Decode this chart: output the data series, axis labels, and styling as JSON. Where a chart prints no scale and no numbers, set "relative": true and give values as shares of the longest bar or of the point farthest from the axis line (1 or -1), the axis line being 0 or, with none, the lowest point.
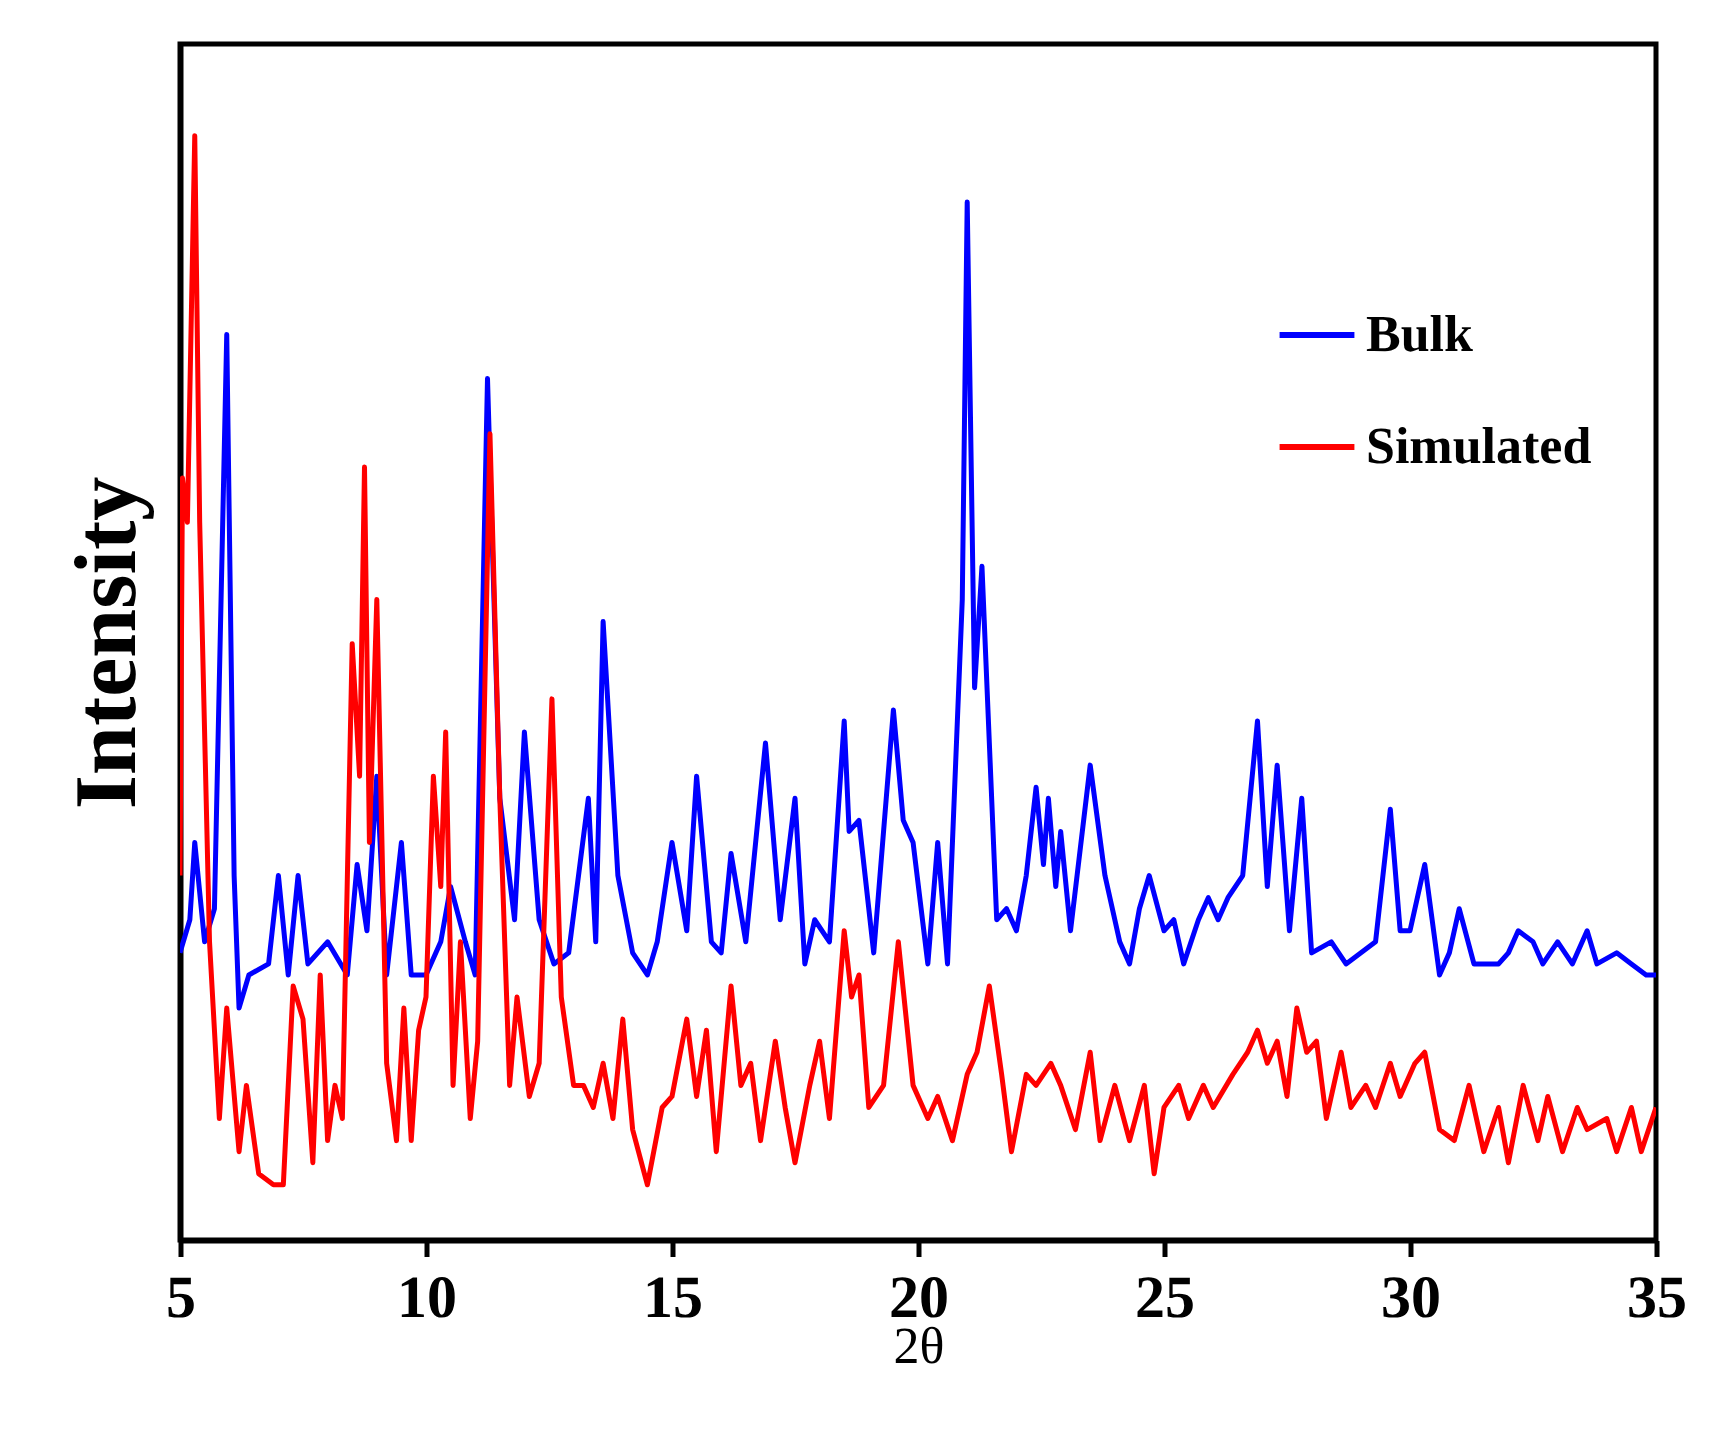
{
  "chart_data": {
    "type": "line",
    "xlabel": "2θ",
    "ylabel": "Intensity",
    "relative": true,
    "xlim": [
      5,
      35
    ],
    "xticks": [
      5,
      10,
      15,
      20,
      25,
      30,
      35
    ],
    "legend": "top right",
    "grid": false,
    "series": [
      {
        "name": "Bulk",
        "color": "#0000ff",
        "x": [
          5.0,
          5.2,
          5.3,
          5.5,
          5.7,
          5.95,
          6.1,
          6.2,
          6.4,
          6.8,
          7.0,
          7.2,
          7.4,
          7.6,
          8.0,
          8.4,
          8.6,
          8.8,
          9.0,
          9.2,
          9.5,
          9.7,
          10.0,
          10.3,
          10.5,
          10.8,
          11.0,
          11.25,
          11.5,
          11.8,
          12.0,
          12.3,
          12.6,
          12.9,
          13.3,
          13.45,
          13.6,
          13.9,
          14.2,
          14.5,
          14.7,
          15.0,
          15.3,
          15.5,
          15.8,
          16.0,
          16.2,
          16.5,
          16.9,
          17.2,
          17.5,
          17.7,
          17.9,
          18.2,
          18.5,
          18.6,
          18.8,
          19.1,
          19.5,
          19.7,
          19.9,
          20.2,
          20.4,
          20.6,
          20.9,
          21.0,
          21.15,
          21.3,
          21.6,
          21.8,
          22.0,
          22.2,
          22.4,
          22.55,
          22.65,
          22.8,
          22.9,
          23.1,
          23.5,
          23.8,
          24.1,
          24.3,
          24.5,
          24.7,
          25.0,
          25.2,
          25.4,
          25.7,
          25.9,
          26.1,
          26.3,
          26.6,
          26.9,
          27.1,
          27.3,
          27.55,
          27.8,
          28.0,
          28.4,
          28.7,
          29.3,
          29.6,
          29.8,
          30.0,
          30.3,
          30.6,
          30.8,
          31.0,
          31.3,
          31.8,
          32.0,
          32.2,
          32.5,
          32.7,
          33.0,
          33.3,
          33.6,
          33.8,
          34.2,
          34.5,
          34.8,
          35.0
        ],
        "values": [
          0.26,
          0.29,
          0.36,
          0.27,
          0.3,
          0.82,
          0.33,
          0.21,
          0.24,
          0.25,
          0.33,
          0.24,
          0.33,
          0.25,
          0.27,
          0.24,
          0.34,
          0.28,
          0.42,
          0.24,
          0.36,
          0.24,
          0.24,
          0.27,
          0.32,
          0.27,
          0.24,
          0.78,
          0.4,
          0.29,
          0.46,
          0.29,
          0.25,
          0.26,
          0.4,
          0.27,
          0.56,
          0.33,
          0.26,
          0.24,
          0.27,
          0.36,
          0.28,
          0.42,
          0.27,
          0.26,
          0.35,
          0.27,
          0.45,
          0.29,
          0.4,
          0.25,
          0.29,
          0.27,
          0.47,
          0.37,
          0.38,
          0.26,
          0.48,
          0.38,
          0.36,
          0.25,
          0.36,
          0.25,
          0.58,
          0.94,
          0.5,
          0.61,
          0.29,
          0.3,
          0.28,
          0.33,
          0.41,
          0.34,
          0.4,
          0.32,
          0.37,
          0.28,
          0.43,
          0.33,
          0.27,
          0.25,
          0.3,
          0.33,
          0.28,
          0.29,
          0.25,
          0.29,
          0.31,
          0.29,
          0.31,
          0.33,
          0.47,
          0.32,
          0.43,
          0.28,
          0.4,
          0.26,
          0.27,
          0.25,
          0.27,
          0.39,
          0.28,
          0.28,
          0.34,
          0.24,
          0.26,
          0.3,
          0.25,
          0.25,
          0.26,
          0.28,
          0.27,
          0.25,
          0.27,
          0.25,
          0.28,
          0.25,
          0.26,
          0.25,
          0.24,
          0.24
        ]
      },
      {
        "name": "Simulated",
        "color": "#ff0000",
        "x": [
          5.0,
          5.05,
          5.15,
          5.3,
          5.4,
          5.6,
          5.8,
          5.95,
          6.2,
          6.35,
          6.6,
          6.9,
          7.1,
          7.3,
          7.5,
          7.7,
          7.85,
          8.0,
          8.15,
          8.3,
          8.5,
          8.65,
          8.75,
          8.85,
          9.0,
          9.2,
          9.4,
          9.55,
          9.7,
          9.85,
          10.0,
          10.15,
          10.3,
          10.4,
          10.55,
          10.7,
          10.9,
          11.05,
          11.3,
          11.5,
          11.7,
          11.85,
          12.1,
          12.3,
          12.56,
          12.75,
          13.0,
          13.2,
          13.4,
          13.6,
          13.8,
          14.0,
          14.2,
          14.5,
          14.8,
          15.0,
          15.3,
          15.5,
          15.7,
          15.9,
          16.2,
          16.4,
          16.6,
          16.8,
          17.1,
          17.3,
          17.5,
          17.8,
          18.0,
          18.2,
          18.5,
          18.65,
          18.8,
          19.0,
          19.3,
          19.6,
          19.9,
          20.2,
          20.4,
          20.7,
          21.0,
          21.2,
          21.45,
          21.7,
          21.9,
          22.2,
          22.4,
          22.7,
          22.9,
          23.2,
          23.5,
          23.7,
          24.0,
          24.3,
          24.6,
          24.8,
          25.0,
          25.3,
          25.5,
          25.8,
          26.0,
          26.4,
          26.7,
          26.9,
          27.1,
          27.3,
          27.5,
          27.7,
          27.9,
          28.1,
          28.3,
          28.6,
          28.8,
          29.1,
          29.3,
          29.6,
          29.8,
          30.1,
          30.3,
          30.6,
          30.9,
          31.2,
          31.5,
          31.8,
          32.0,
          32.3,
          32.6,
          32.8,
          33.1,
          33.4,
          33.6,
          34.0,
          34.2,
          34.5,
          34.7,
          35.0
        ],
        "values": [
          0.33,
          0.69,
          0.65,
          1.0,
          0.65,
          0.27,
          0.11,
          0.21,
          0.08,
          0.14,
          0.06,
          0.05,
          0.05,
          0.23,
          0.2,
          0.07,
          0.24,
          0.09,
          0.14,
          0.11,
          0.54,
          0.42,
          0.7,
          0.36,
          0.58,
          0.16,
          0.09,
          0.21,
          0.09,
          0.19,
          0.22,
          0.42,
          0.32,
          0.46,
          0.14,
          0.27,
          0.11,
          0.18,
          0.73,
          0.4,
          0.14,
          0.22,
          0.13,
          0.16,
          0.49,
          0.22,
          0.14,
          0.14,
          0.12,
          0.16,
          0.11,
          0.2,
          0.1,
          0.05,
          0.12,
          0.13,
          0.2,
          0.13,
          0.19,
          0.08,
          0.23,
          0.14,
          0.16,
          0.09,
          0.18,
          0.12,
          0.07,
          0.14,
          0.18,
          0.11,
          0.28,
          0.22,
          0.24,
          0.12,
          0.14,
          0.27,
          0.14,
          0.11,
          0.13,
          0.09,
          0.15,
          0.17,
          0.23,
          0.15,
          0.08,
          0.15,
          0.14,
          0.16,
          0.14,
          0.1,
          0.17,
          0.09,
          0.14,
          0.09,
          0.14,
          0.06,
          0.12,
          0.14,
          0.11,
          0.14,
          0.12,
          0.15,
          0.17,
          0.19,
          0.16,
          0.18,
          0.13,
          0.21,
          0.17,
          0.18,
          0.11,
          0.17,
          0.12,
          0.14,
          0.12,
          0.16,
          0.13,
          0.16,
          0.17,
          0.1,
          0.09,
          0.14,
          0.08,
          0.12,
          0.07,
          0.14,
          0.09,
          0.13,
          0.08,
          0.12,
          0.1,
          0.11,
          0.08,
          0.12,
          0.08,
          0.12
        ]
      }
    ]
  }
}
